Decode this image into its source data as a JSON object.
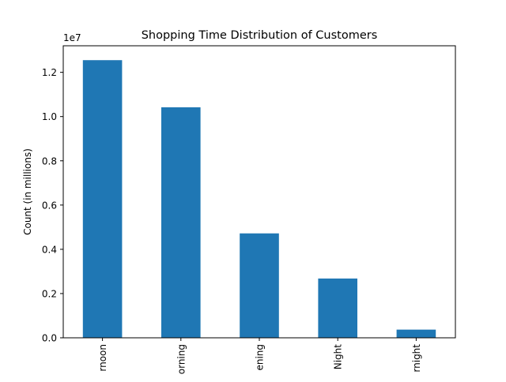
{
  "chart_data": {
    "type": "bar",
    "title": "Shopping Time Distribution of Customers",
    "xlabel": "",
    "ylabel": "Count (in millions)",
    "categories": [
      "Afternoon",
      "Morning",
      "Evening",
      "Night",
      "Overnight"
    ],
    "visible_tick_labels": [
      "rnoon",
      "orning",
      "ening",
      "Night",
      "rnight"
    ],
    "values": [
      12550000,
      10420000,
      4720000,
      2680000,
      370000
    ],
    "ylim": [
      0,
      13200000
    ],
    "y_ticks": [
      0,
      2000000,
      4000000,
      6000000,
      8000000,
      10000000,
      12000000
    ],
    "y_tick_labels": [
      "0.0",
      "0.2",
      "0.4",
      "0.6",
      "0.8",
      "1.0",
      "1.2"
    ],
    "y_offset_label": "1e7",
    "bar_color": "#1f77b4",
    "grid": false,
    "legend": "none"
  }
}
